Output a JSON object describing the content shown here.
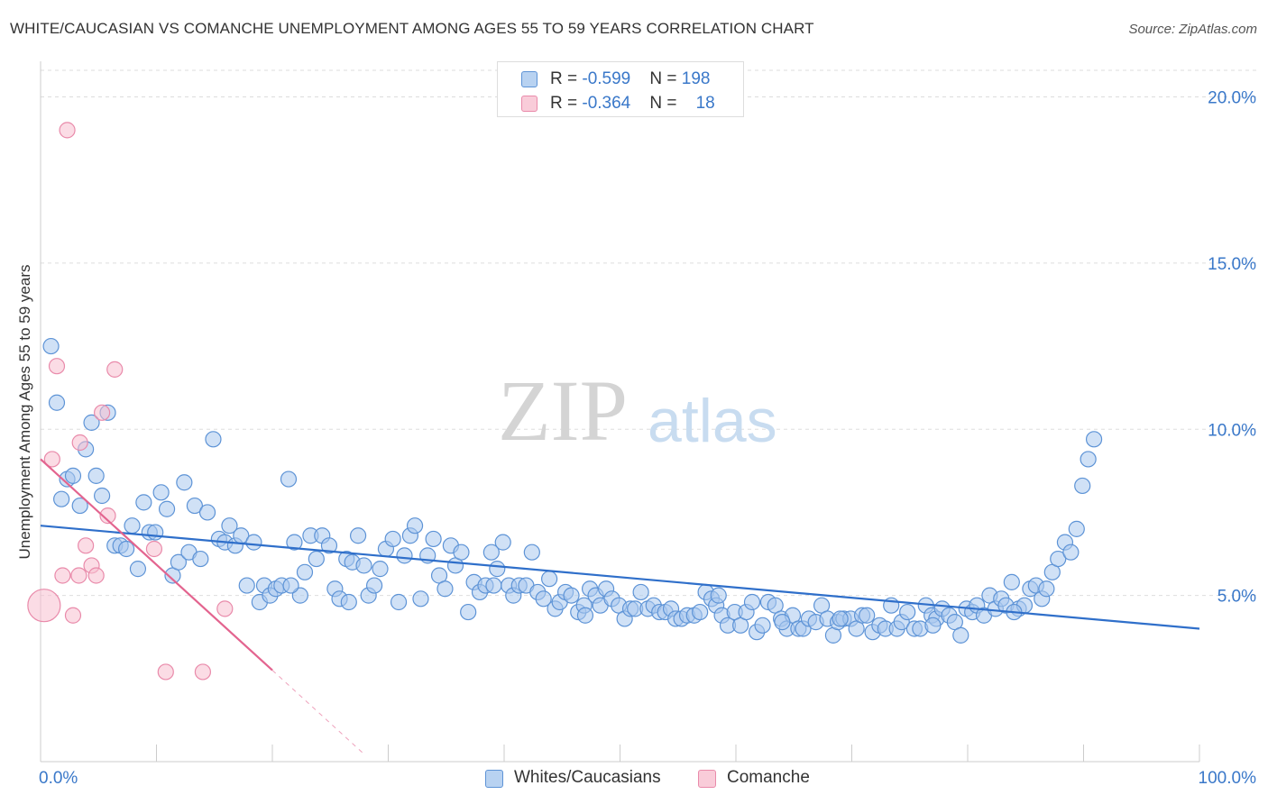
{
  "title": "WHITE/CAUCASIAN VS COMANCHE UNEMPLOYMENT AMONG AGES 55 TO 59 YEARS CORRELATION CHART",
  "source": "Source: ZipAtlas.com",
  "watermark": {
    "zip": "ZIP",
    "atlas": "atlas"
  },
  "colors": {
    "blue_fill": "#a9c8ee",
    "blue_stroke": "#5d93d6",
    "blue_line": "#2f6fca",
    "pink_fill": "#f7bfd0",
    "pink_stroke": "#e98aaa",
    "pink_line": "#e3648f",
    "tick_blue": "#3a78c9",
    "grid": "#dddddd"
  },
  "legend": {
    "rows": [
      {
        "r_label": "R = ",
        "r_value": "-0.599",
        "n_label": "N = ",
        "n_value": "198"
      },
      {
        "r_label": "R = ",
        "r_value": "-0.364",
        "n_label": "N = ",
        "n_value": "18"
      }
    ]
  },
  "bottom_legend": [
    {
      "label": "Whites/Caucasians"
    },
    {
      "label": "Comanche"
    }
  ],
  "chart_data": {
    "type": "scatter",
    "title": "WHITE/CAUCASIAN VS COMANCHE UNEMPLOYMENT AMONG AGES 55 TO 59 YEARS CORRELATION CHART",
    "xlabel": "",
    "ylabel": "Unemployment Among Ages 55 to 59 years",
    "xlim": [
      0,
      100
    ],
    "ylim": [
      0,
      20.8
    ],
    "x_tick_labels": [
      "0.0%",
      "100.0%"
    ],
    "y_ticks": [
      5,
      10,
      15,
      20
    ],
    "y_tick_labels": [
      "5.0%",
      "10.0%",
      "15.0%",
      "20.0%"
    ],
    "grid": true,
    "legend_position": "top-center",
    "series": [
      {
        "name": "Whites/Caucasians",
        "r": -0.599,
        "n": 198,
        "trend": {
          "x": [
            0,
            100
          ],
          "y": [
            7.1,
            4.0
          ]
        },
        "points": [
          [
            0.9,
            12.5
          ],
          [
            1.4,
            10.8
          ],
          [
            1.8,
            7.9
          ],
          [
            2.3,
            8.5
          ],
          [
            2.8,
            8.6
          ],
          [
            3.4,
            7.7
          ],
          [
            3.9,
            9.4
          ],
          [
            4.4,
            10.2
          ],
          [
            4.8,
            8.6
          ],
          [
            5.3,
            8.0
          ],
          [
            5.8,
            10.5
          ],
          [
            6.4,
            6.5
          ],
          [
            6.9,
            6.5
          ],
          [
            7.4,
            6.4
          ],
          [
            7.9,
            7.1
          ],
          [
            8.4,
            5.8
          ],
          [
            8.9,
            7.8
          ],
          [
            9.4,
            6.9
          ],
          [
            9.9,
            6.9
          ],
          [
            10.4,
            8.1
          ],
          [
            10.9,
            7.6
          ],
          [
            11.4,
            5.6
          ],
          [
            11.9,
            6.0
          ],
          [
            12.4,
            8.4
          ],
          [
            12.8,
            6.3
          ],
          [
            13.3,
            7.7
          ],
          [
            13.8,
            6.1
          ],
          [
            14.4,
            7.5
          ],
          [
            14.9,
            9.7
          ],
          [
            15.4,
            6.7
          ],
          [
            15.9,
            6.6
          ],
          [
            16.3,
            7.1
          ],
          [
            16.8,
            6.5
          ],
          [
            17.3,
            6.8
          ],
          [
            17.8,
            5.3
          ],
          [
            18.4,
            6.6
          ],
          [
            18.9,
            4.8
          ],
          [
            19.3,
            5.3
          ],
          [
            19.8,
            5.0
          ],
          [
            20.3,
            5.2
          ],
          [
            20.8,
            5.3
          ],
          [
            21.4,
            8.5
          ],
          [
            21.9,
            6.6
          ],
          [
            22.4,
            5.0
          ],
          [
            22.8,
            5.7
          ],
          [
            23.3,
            6.8
          ],
          [
            23.8,
            6.1
          ],
          [
            24.3,
            6.8
          ],
          [
            24.9,
            6.5
          ],
          [
            25.4,
            5.2
          ],
          [
            25.8,
            4.9
          ],
          [
            26.4,
            6.1
          ],
          [
            26.9,
            6.0
          ],
          [
            27.4,
            6.8
          ],
          [
            27.9,
            5.9
          ],
          [
            28.3,
            5.0
          ],
          [
            28.8,
            5.3
          ],
          [
            29.3,
            5.8
          ],
          [
            29.8,
            6.4
          ],
          [
            30.4,
            6.7
          ],
          [
            30.9,
            4.8
          ],
          [
            31.4,
            6.2
          ],
          [
            31.9,
            6.8
          ],
          [
            32.3,
            7.1
          ],
          [
            32.8,
            4.9
          ],
          [
            33.4,
            6.2
          ],
          [
            33.9,
            6.7
          ],
          [
            34.4,
            5.6
          ],
          [
            34.9,
            5.2
          ],
          [
            35.4,
            6.5
          ],
          [
            35.8,
            5.9
          ],
          [
            36.3,
            6.3
          ],
          [
            36.9,
            4.5
          ],
          [
            37.4,
            5.4
          ],
          [
            37.9,
            5.1
          ],
          [
            38.4,
            5.3
          ],
          [
            38.9,
            6.3
          ],
          [
            39.4,
            5.8
          ],
          [
            39.9,
            6.6
          ],
          [
            40.4,
            5.3
          ],
          [
            40.8,
            5.0
          ],
          [
            41.3,
            5.3
          ],
          [
            41.9,
            5.3
          ],
          [
            42.4,
            6.3
          ],
          [
            42.9,
            5.1
          ],
          [
            43.4,
            4.9
          ],
          [
            43.9,
            5.5
          ],
          [
            44.4,
            4.6
          ],
          [
            44.8,
            4.8
          ],
          [
            45.3,
            5.1
          ],
          [
            45.8,
            5.0
          ],
          [
            46.4,
            4.5
          ],
          [
            46.9,
            4.7
          ],
          [
            47.4,
            5.2
          ],
          [
            47.9,
            5.0
          ],
          [
            48.3,
            4.7
          ],
          [
            48.8,
            5.2
          ],
          [
            49.3,
            4.9
          ],
          [
            49.9,
            4.7
          ],
          [
            50.4,
            4.3
          ],
          [
            50.9,
            4.6
          ],
          [
            51.3,
            4.6
          ],
          [
            51.8,
            5.1
          ],
          [
            52.4,
            4.6
          ],
          [
            52.9,
            4.7
          ],
          [
            53.4,
            4.5
          ],
          [
            53.9,
            4.5
          ],
          [
            54.4,
            4.6
          ],
          [
            54.8,
            4.3
          ],
          [
            55.3,
            4.3
          ],
          [
            55.8,
            4.4
          ],
          [
            56.4,
            4.4
          ],
          [
            56.9,
            4.5
          ],
          [
            57.4,
            5.1
          ],
          [
            57.9,
            4.9
          ],
          [
            58.3,
            4.7
          ],
          [
            58.8,
            4.4
          ],
          [
            59.3,
            4.1
          ],
          [
            59.9,
            4.5
          ],
          [
            60.4,
            4.1
          ],
          [
            60.9,
            4.5
          ],
          [
            61.4,
            4.8
          ],
          [
            61.8,
            3.9
          ],
          [
            62.3,
            4.1
          ],
          [
            62.8,
            4.8
          ],
          [
            63.4,
            4.7
          ],
          [
            63.9,
            4.3
          ],
          [
            64.4,
            4.0
          ],
          [
            64.9,
            4.4
          ],
          [
            65.4,
            4.0
          ],
          [
            65.8,
            4.0
          ],
          [
            66.3,
            4.3
          ],
          [
            66.9,
            4.2
          ],
          [
            67.4,
            4.7
          ],
          [
            67.9,
            4.3
          ],
          [
            68.4,
            3.8
          ],
          [
            68.8,
            4.2
          ],
          [
            69.3,
            4.3
          ],
          [
            69.9,
            4.3
          ],
          [
            70.4,
            4.0
          ],
          [
            70.9,
            4.4
          ],
          [
            71.3,
            4.4
          ],
          [
            71.8,
            3.9
          ],
          [
            72.4,
            4.1
          ],
          [
            72.9,
            4.0
          ],
          [
            73.4,
            4.7
          ],
          [
            73.9,
            4.0
          ],
          [
            74.3,
            4.2
          ],
          [
            74.8,
            4.5
          ],
          [
            75.4,
            4.0
          ],
          [
            75.9,
            4.0
          ],
          [
            76.4,
            4.7
          ],
          [
            76.9,
            4.4
          ],
          [
            77.3,
            4.3
          ],
          [
            77.8,
            4.6
          ],
          [
            78.4,
            4.4
          ],
          [
            78.9,
            4.2
          ],
          [
            79.4,
            3.8
          ],
          [
            79.9,
            4.6
          ],
          [
            80.4,
            4.5
          ],
          [
            80.8,
            4.7
          ],
          [
            81.4,
            4.4
          ],
          [
            81.9,
            5.0
          ],
          [
            82.4,
            4.6
          ],
          [
            82.9,
            4.9
          ],
          [
            83.3,
            4.7
          ],
          [
            83.8,
            5.4
          ],
          [
            84.4,
            4.6
          ],
          [
            84.9,
            4.7
          ],
          [
            85.4,
            5.2
          ],
          [
            85.9,
            5.3
          ],
          [
            86.4,
            4.9
          ],
          [
            86.8,
            5.2
          ],
          [
            87.3,
            5.7
          ],
          [
            87.8,
            6.1
          ],
          [
            88.4,
            6.6
          ],
          [
            88.9,
            6.3
          ],
          [
            89.4,
            7.0
          ],
          [
            89.9,
            8.3
          ],
          [
            90.4,
            9.1
          ],
          [
            90.9,
            9.7
          ],
          [
            21.6,
            5.3
          ],
          [
            26.6,
            4.8
          ],
          [
            39.1,
            5.3
          ],
          [
            58.5,
            5.0
          ],
          [
            69.0,
            4.3
          ],
          [
            77.0,
            4.1
          ],
          [
            84.0,
            4.5
          ],
          [
            64.0,
            4.2
          ],
          [
            47.0,
            4.4
          ]
        ]
      },
      {
        "name": "Comanche",
        "r": -0.364,
        "n": 18,
        "trend": {
          "x": [
            0,
            20
          ],
          "y": [
            9.1,
            2.75
          ]
        },
        "trend_dashed": {
          "x": [
            20,
            28
          ],
          "y": [
            2.75,
            0.2
          ]
        },
        "points": [
          [
            0.3,
            4.7
          ],
          [
            1.0,
            9.1
          ],
          [
            1.4,
            11.9
          ],
          [
            1.9,
            5.6
          ],
          [
            2.3,
            19.0
          ],
          [
            2.8,
            4.4
          ],
          [
            3.4,
            9.6
          ],
          [
            3.9,
            6.5
          ],
          [
            4.4,
            5.9
          ],
          [
            4.8,
            5.6
          ],
          [
            5.3,
            10.5
          ],
          [
            5.8,
            7.4
          ],
          [
            6.4,
            11.8
          ],
          [
            9.8,
            6.4
          ],
          [
            14.0,
            2.7
          ],
          [
            15.9,
            4.6
          ],
          [
            10.8,
            2.7
          ],
          [
            3.3,
            5.6
          ]
        ]
      }
    ]
  }
}
